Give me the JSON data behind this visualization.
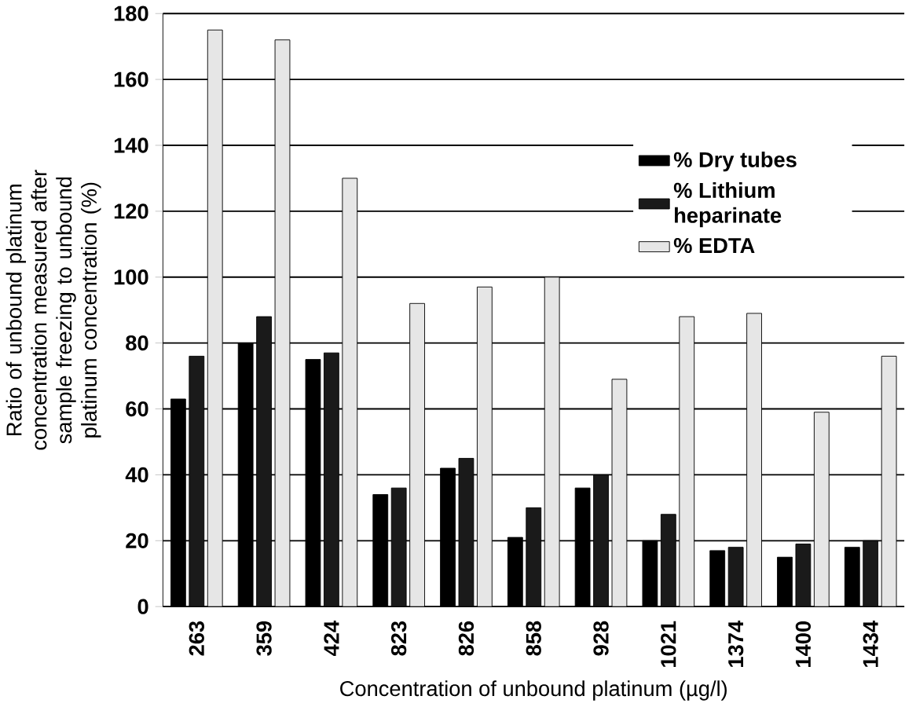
{
  "chart_data": {
    "type": "bar",
    "xlabel": "Concentration of unbound platinum (µg/l)",
    "ylabel": "Ratio of unbound platinum concentration measured after sample freezing to unbound platinum concentration (%)",
    "categories": [
      "263",
      "359",
      "424",
      "823",
      "826",
      "858",
      "928",
      "1021",
      "1374",
      "1400",
      "1434"
    ],
    "series": [
      {
        "name": "% Dry tubes",
        "color": "#000000",
        "values": [
          63,
          80,
          75,
          34,
          42,
          21,
          36,
          20,
          17,
          15,
          18
        ]
      },
      {
        "name": "% Lithium heparinate",
        "color": "#1a1a1a",
        "values": [
          76,
          88,
          77,
          36,
          45,
          30,
          40,
          28,
          18,
          19,
          20
        ]
      },
      {
        "name": "% EDTA",
        "color": "#e6e6e6",
        "values": [
          175,
          172,
          130,
          92,
          97,
          100,
          69,
          88,
          89,
          59,
          76
        ]
      }
    ],
    "ylim": [
      0,
      180
    ],
    "yticks": [
      0,
      20,
      40,
      60,
      80,
      100,
      120,
      140,
      160,
      180
    ],
    "grid": "y",
    "legend": "top right"
  }
}
